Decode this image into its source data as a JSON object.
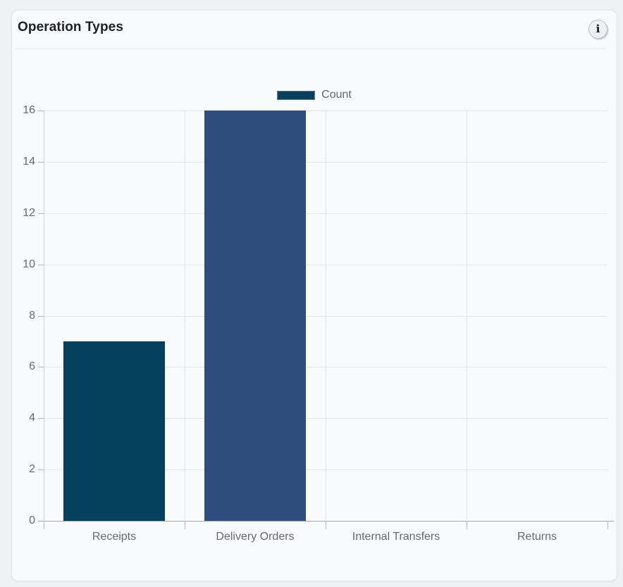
{
  "header": {
    "title": "Operation Types",
    "info_glyph": "i"
  },
  "colors": {
    "page_bg": "#eef0f2",
    "card_bg": "#f9fafc",
    "card_border": "#e3e5ea",
    "divider": "#e7e8ec",
    "title": "#1d2127",
    "grid": "#e4e6ea",
    "axis": "#a6a8ad",
    "axis_light": "#cdd0d4",
    "tick": "#b7b9be",
    "label": "#67696e",
    "legend_border": "#6e7a86"
  },
  "chart_data": {
    "type": "bar",
    "title": "Operation Types",
    "categories": [
      "Receipts",
      "Delivery Orders",
      "Internal Transfers",
      "Returns"
    ],
    "series": [
      {
        "name": "Count",
        "values": [
          7,
          16,
          0,
          0
        ],
        "colors": [
          "#05405f",
          "#2e4c7c",
          "#05405f",
          "#2e4c7c"
        ]
      }
    ],
    "ylim": [
      0,
      16
    ],
    "yticks": [
      0,
      2,
      4,
      6,
      8,
      10,
      12,
      14,
      16
    ],
    "grid": true,
    "legend_position": "top-center",
    "bar_width_fraction": 0.72
  }
}
